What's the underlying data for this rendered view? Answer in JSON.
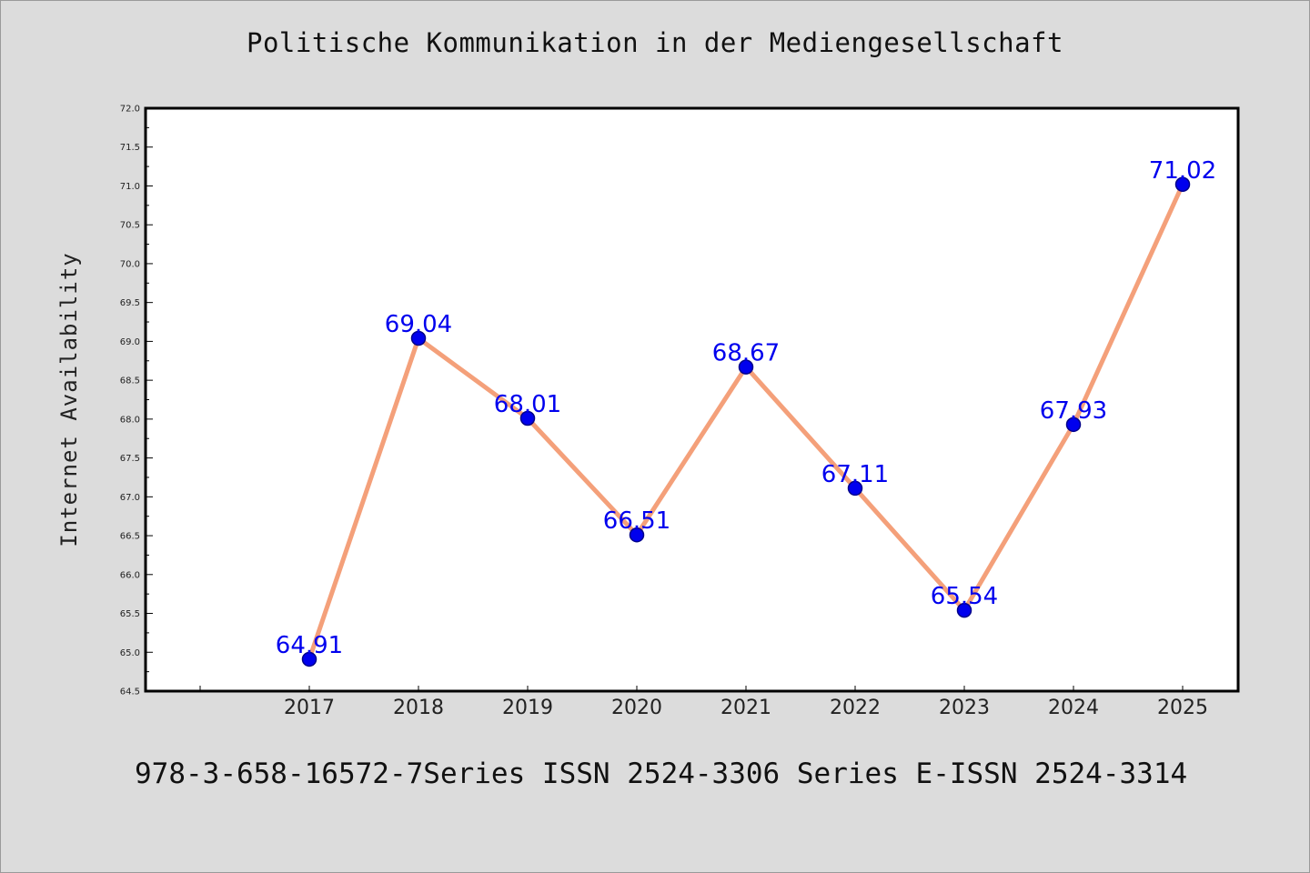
{
  "title": "Politische Kommunikation in der Mediengesellschaft",
  "footer": "978-3-658-16572-7Series ISSN 2524-3306 Series E-ISSN 2524-3314",
  "chart_data": {
    "type": "line",
    "title": "Politische Kommunikation in der Mediengesellschaft",
    "xlabel": "",
    "ylabel": "Internet Availability",
    "categories": [
      "2017",
      "2018",
      "2019",
      "2020",
      "2021",
      "2022",
      "2023",
      "2024",
      "2025"
    ],
    "values": [
      64.91,
      69.04,
      68.01,
      66.51,
      68.67,
      67.11,
      65.54,
      67.93,
      71.02
    ],
    "data_labels": [
      "64.91",
      "69.04",
      "68.01",
      "66.51",
      "68.67",
      "67.11",
      "65.54",
      "67.93",
      "71.02"
    ],
    "yticks": [
      "64.5",
      "65.0",
      "65.5",
      "66.0",
      "66.5",
      "67.0",
      "67.5",
      "68.0",
      "68.5",
      "69.0",
      "69.5",
      "70.0",
      "70.5",
      "71.0",
      "71.5",
      "72.0"
    ],
    "ylim": [
      64.5,
      72.0
    ],
    "grid": false,
    "line_color": "#f4a07a",
    "marker_color": "#0000ee",
    "label_color": "#0000ee"
  }
}
